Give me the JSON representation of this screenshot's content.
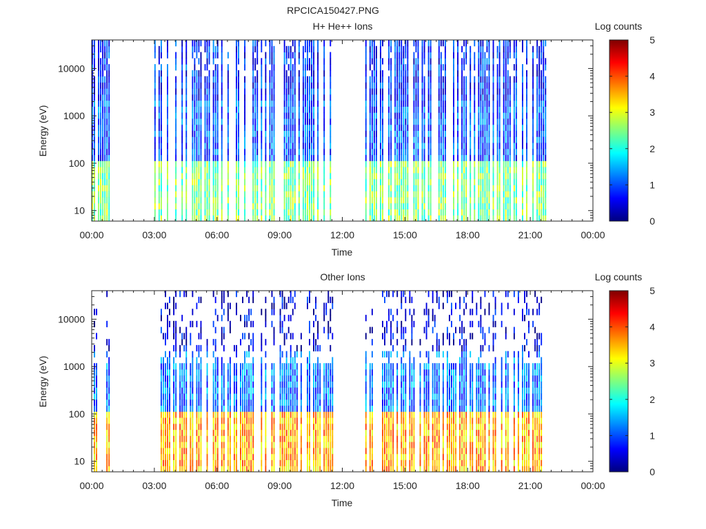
{
  "figure": {
    "title": "RPCICA150427.PNG"
  },
  "colorbar_label": "Log counts",
  "colormap": [
    "#00007f",
    "#0000ff",
    "#007fff",
    "#00ffff",
    "#7fff7f",
    "#ffff00",
    "#ff7f00",
    "#ff0000",
    "#7f0000"
  ],
  "chart_data": [
    {
      "type": "heatmap",
      "title": "H+ He++ Ions",
      "xlabel": "Time",
      "ylabel": "Energy (eV)",
      "x_ticks": [
        "00:00",
        "03:00",
        "06:00",
        "09:00",
        "12:00",
        "15:00",
        "18:00",
        "21:00",
        "00:00"
      ],
      "x_range_hours": [
        0,
        24
      ],
      "y_scale": "log",
      "y_ticks": [
        "10",
        "100",
        "1000",
        "10000"
      ],
      "y_tick_values": [
        10,
        100,
        1000,
        10000
      ],
      "y_range": [
        6,
        40000
      ],
      "colorbar": {
        "label": "Log counts",
        "ticks": [
          "0",
          "1",
          "2",
          "3",
          "4",
          "5"
        ],
        "range": [
          0,
          5
        ]
      },
      "data_gaps_hours": [
        [
          0.8,
          3.0
        ],
        [
          11.5,
          13.0
        ],
        [
          21.8,
          24
        ]
      ],
      "typical_log_counts": {
        "low_energy_band": 2.5,
        "mid_energy": 1.0,
        "high_energy": 0.8
      }
    },
    {
      "type": "heatmap",
      "title": "Other Ions",
      "xlabel": "Time",
      "ylabel": "Energy (eV)",
      "x_ticks": [
        "00:00",
        "03:00",
        "06:00",
        "09:00",
        "12:00",
        "15:00",
        "18:00",
        "21:00",
        "00:00"
      ],
      "x_range_hours": [
        0,
        24
      ],
      "y_scale": "log",
      "y_ticks": [
        "10",
        "100",
        "1000",
        "10000"
      ],
      "y_tick_values": [
        10,
        100,
        1000,
        10000
      ],
      "y_range": [
        6,
        40000
      ],
      "colorbar": {
        "label": "Log counts",
        "ticks": [
          "0",
          "1",
          "2",
          "3",
          "4",
          "5"
        ],
        "range": [
          0,
          5
        ]
      },
      "data_gaps_hours": [
        [
          0.8,
          3.0
        ],
        [
          11.5,
          13.0
        ],
        [
          21.8,
          24
        ]
      ],
      "typical_log_counts": {
        "low_energy_band": 3.5,
        "mid_energy": 1.2,
        "high_energy": 0.5
      }
    }
  ]
}
